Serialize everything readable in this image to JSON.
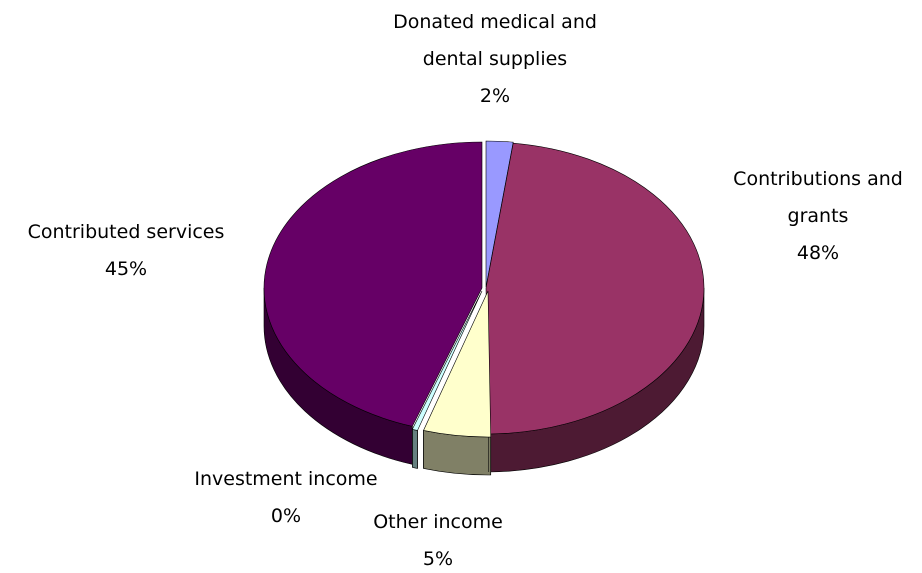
{
  "chart_data": {
    "type": "pie",
    "style": "3d-exploded-tilted",
    "legend": "none",
    "slices": [
      {
        "label_lines": [
          "Donated medical and",
          "dental supplies"
        ],
        "pct_label": "2%",
        "value": 2,
        "color": "#9999ff"
      },
      {
        "label_lines": [
          "Contributions and",
          "grants"
        ],
        "pct_label": "48%",
        "value": 48,
        "color": "#993366"
      },
      {
        "label_lines": [
          "Other income"
        ],
        "pct_label": "5%",
        "value": 5,
        "color": "#ffffcc"
      },
      {
        "label_lines": [
          "Investment income"
        ],
        "pct_label": "0%",
        "value": 0.4,
        "color": "#ccffff"
      },
      {
        "label_lines": [
          "Contributed services"
        ],
        "pct_label": "45%",
        "value": 45,
        "color": "#660066"
      }
    ]
  }
}
